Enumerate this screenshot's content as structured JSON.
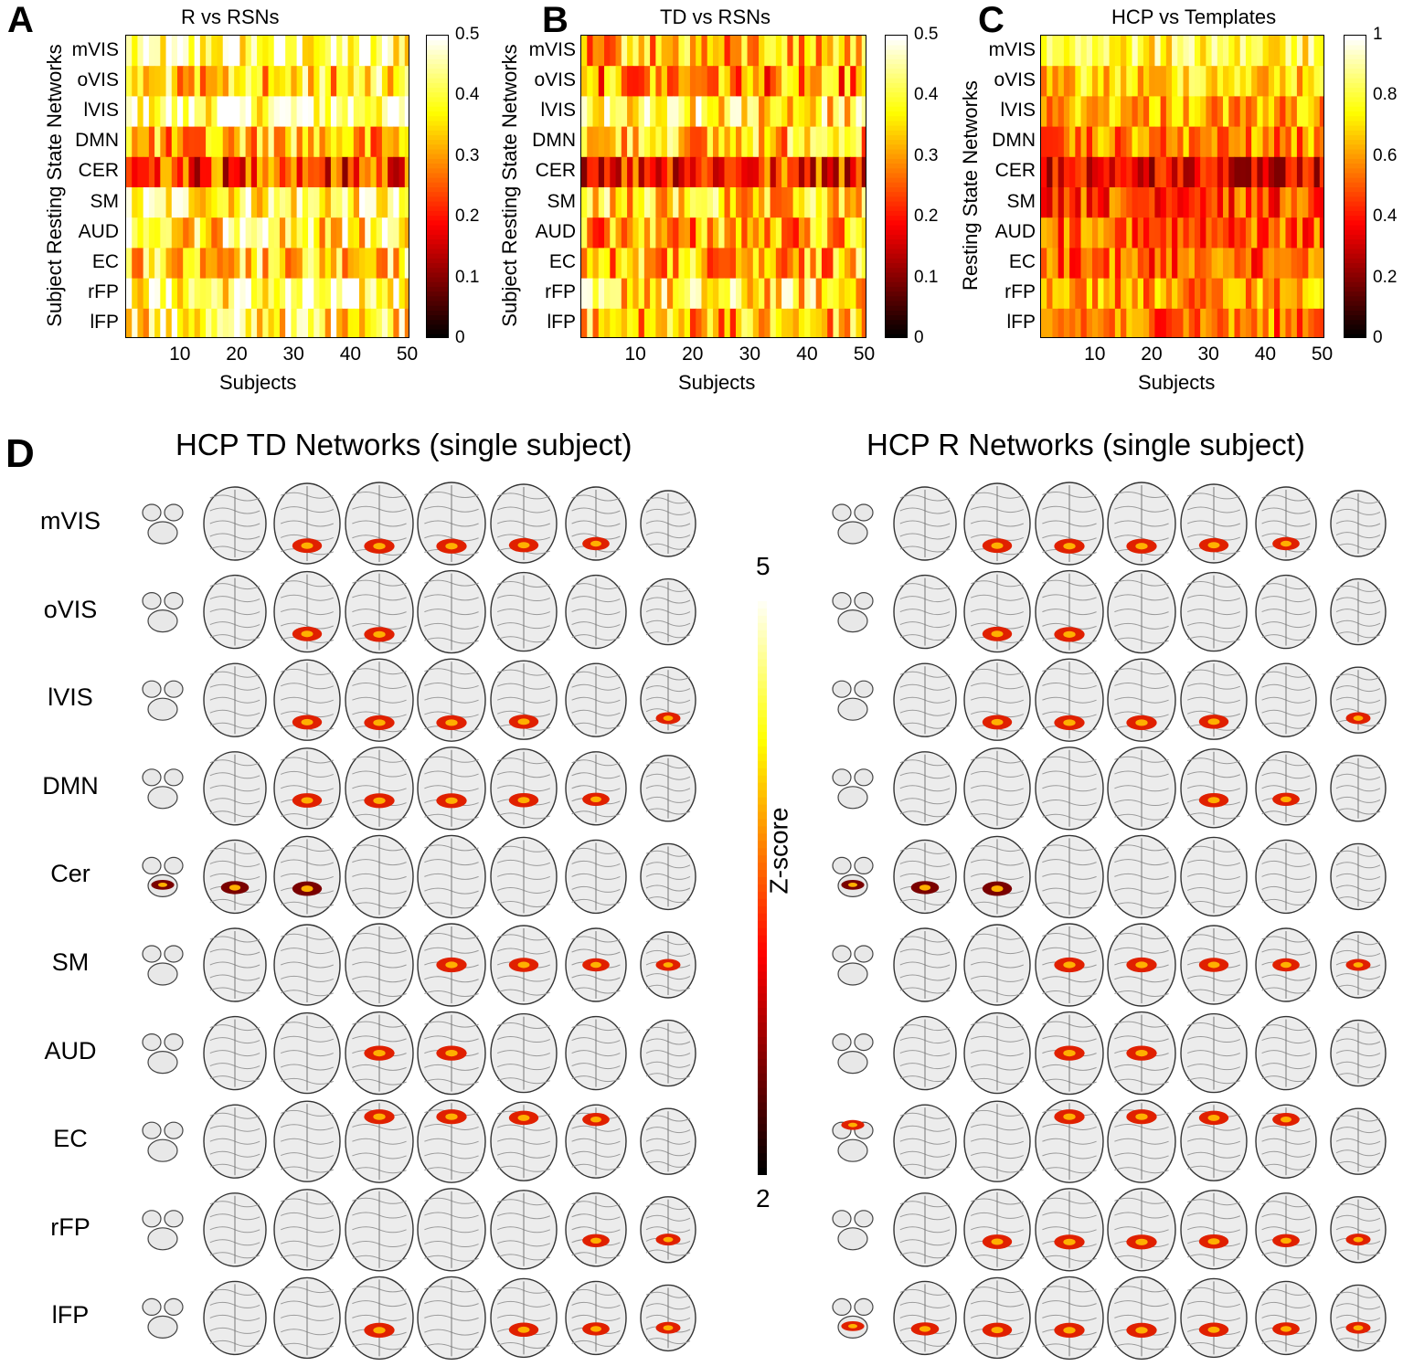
{
  "chart_data": [
    {
      "type": "heatmap",
      "panel": "A",
      "title": "R vs RSNs",
      "xlabel": "Subjects",
      "ylabel": "Subject Resting State Networks",
      "rows": [
        "mVIS",
        "oVIS",
        "lVIS",
        "DMN",
        "CER",
        "SM",
        "AUD",
        "EC",
        "rFP",
        "lFP"
      ],
      "x_ticks": [
        "10",
        "20",
        "30",
        "40",
        "50"
      ],
      "n_subjects": 50,
      "colorbar": {
        "min": 0,
        "max": 0.5,
        "ticks": [
          "0",
          "0.1",
          "0.2",
          "0.3",
          "0.4",
          "0.5"
        ]
      },
      "row_mean_values": [
        0.42,
        0.36,
        0.45,
        0.33,
        0.22,
        0.41,
        0.38,
        0.37,
        0.42,
        0.4
      ],
      "colormap": "hot"
    },
    {
      "type": "heatmap",
      "panel": "B",
      "title": "TD vs RSNs",
      "xlabel": "Subjects",
      "ylabel": "Subject Resting State Networks",
      "rows": [
        "mVIS",
        "oVIS",
        "lVIS",
        "DMN",
        "CER",
        "SM",
        "AUD",
        "EC",
        "rFP",
        "lFP"
      ],
      "x_ticks": [
        "10",
        "20",
        "30",
        "40",
        "50"
      ],
      "n_subjects": 50,
      "colorbar": {
        "min": 0,
        "max": 0.5,
        "ticks": [
          "0",
          "0.1",
          "0.2",
          "0.3",
          "0.4",
          "0.5"
        ]
      },
      "row_mean_values": [
        0.33,
        0.29,
        0.38,
        0.34,
        0.22,
        0.37,
        0.31,
        0.33,
        0.37,
        0.33
      ],
      "colormap": "hot"
    },
    {
      "type": "heatmap",
      "panel": "C",
      "title": "HCP vs Templates",
      "xlabel": "Subjects",
      "ylabel": "Resting State Networks",
      "rows": [
        "mVIS",
        "oVIS",
        "lVIS",
        "DMN",
        "CER",
        "SM",
        "AUD",
        "EC",
        "rFP",
        "lFP"
      ],
      "x_ticks": [
        "10",
        "20",
        "30",
        "40",
        "50"
      ],
      "n_subjects": 50,
      "colorbar": {
        "min": 0,
        "max": 1,
        "ticks": [
          "0",
          "0.2",
          "0.4",
          "0.6",
          "0.8",
          "1"
        ]
      },
      "row_mean_values": [
        0.8,
        0.7,
        0.62,
        0.58,
        0.35,
        0.48,
        0.5,
        0.52,
        0.6,
        0.55
      ],
      "colormap": "hot"
    }
  ],
  "panel_d": {
    "letter": "D",
    "title_left": "HCP TD Networks (single subject)",
    "title_right": "HCP R Networks (single subject)",
    "networks": [
      "mVIS",
      "oVIS",
      "lVIS",
      "DMN",
      "Cer",
      "SM",
      "AUD",
      "EC",
      "rFP",
      "lFP"
    ],
    "slices_per_row": 8,
    "colorbar": {
      "min_label": "2",
      "max_label": "5",
      "label": "Z-score"
    },
    "activations_left": [
      [
        0,
        0,
        1,
        1,
        1,
        1,
        1,
        0
      ],
      [
        0,
        0,
        1,
        1,
        0,
        0,
        0,
        0
      ],
      [
        0,
        0,
        1,
        1,
        1,
        1,
        0,
        1
      ],
      [
        0,
        0,
        1,
        1,
        1,
        1,
        1,
        0
      ],
      [
        1,
        1,
        1,
        0,
        0,
        0,
        0,
        0
      ],
      [
        0,
        0,
        0,
        0,
        1,
        1,
        1,
        1
      ],
      [
        0,
        0,
        0,
        1,
        1,
        0,
        0,
        0
      ],
      [
        0,
        0,
        0,
        1,
        1,
        1,
        1,
        0
      ],
      [
        0,
        0,
        0,
        0,
        0,
        0,
        1,
        1
      ],
      [
        0,
        0,
        0,
        1,
        0,
        1,
        1,
        1
      ]
    ],
    "activations_right": [
      [
        0,
        0,
        1,
        1,
        1,
        1,
        1,
        0
      ],
      [
        0,
        0,
        1,
        1,
        0,
        0,
        0,
        0
      ],
      [
        0,
        0,
        1,
        1,
        1,
        1,
        0,
        1
      ],
      [
        0,
        0,
        0,
        0,
        0,
        1,
        1,
        0
      ],
      [
        1,
        1,
        1,
        0,
        0,
        0,
        0,
        0
      ],
      [
        0,
        0,
        0,
        1,
        1,
        1,
        1,
        1
      ],
      [
        0,
        0,
        0,
        1,
        1,
        0,
        0,
        0
      ],
      [
        1,
        0,
        0,
        1,
        1,
        1,
        1,
        0
      ],
      [
        0,
        0,
        1,
        1,
        1,
        1,
        1,
        1
      ],
      [
        1,
        1,
        1,
        1,
        1,
        1,
        1,
        1
      ]
    ]
  },
  "colors": {
    "axis": "#000000",
    "background": "#ffffff"
  }
}
